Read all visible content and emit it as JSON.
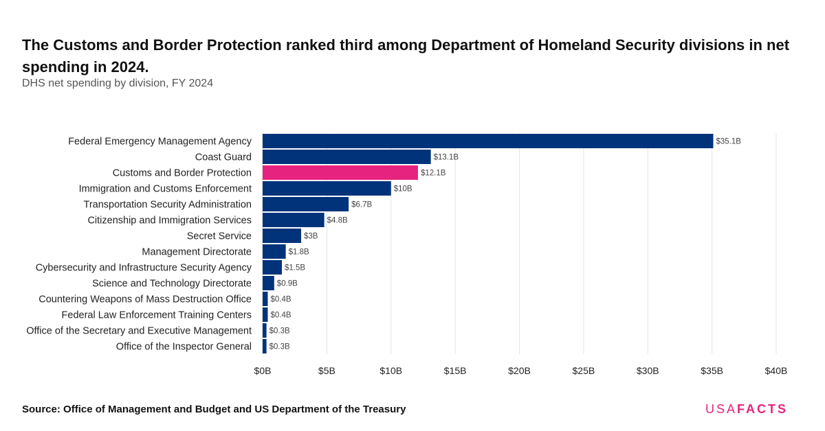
{
  "header": {
    "title": "The Customs and Border Protection ranked third among Department of Homeland Security divisions in net spending in 2024.",
    "subtitle": "DHS net spending by division, FY 2024"
  },
  "footer": {
    "source_label": "Source:",
    "source_text": "Office of Management and Budget and US Department of the Treasury",
    "logo_part1": "USA",
    "logo_part2": "FACTS"
  },
  "colors": {
    "bar": "#00337a",
    "highlight": "#e6237e",
    "grid": "#e4e4e4"
  },
  "chart_data": {
    "type": "bar",
    "orientation": "horizontal",
    "categories": [
      "Federal Emergency Management Agency",
      "Coast Guard",
      "Customs and Border Protection",
      "Immigration and Customs Enforcement",
      "Transportation Security Administration",
      "Citizenship and Immigration Services",
      "Secret Service",
      "Management Directorate",
      "Cybersecurity and Infrastructure Security Agency",
      "Science and Technology Directorate",
      "Countering Weapons of Mass Destruction Office",
      "Federal Law Enforcement Training Centers",
      "Office of the Secretary and Executive Management",
      "Office of the Inspector General"
    ],
    "values": [
      35.1,
      13.1,
      12.1,
      10,
      6.7,
      4.8,
      3,
      1.8,
      1.5,
      0.9,
      0.4,
      0.4,
      0.3,
      0.3
    ],
    "value_labels": [
      "$35.1B",
      "$13.1B",
      "$12.1B",
      "$10B",
      "$6.7B",
      "$4.8B",
      "$3B",
      "$1.8B",
      "$1.5B",
      "$0.9B",
      "$0.4B",
      "$0.4B",
      "$0.3B",
      "$0.3B"
    ],
    "highlight_category": "Customs and Border Protection",
    "xlim": [
      0,
      40
    ],
    "xticks": [
      0,
      5,
      10,
      15,
      20,
      25,
      30,
      35,
      40
    ],
    "xtick_labels": [
      "$0B",
      "$5B",
      "$10B",
      "$15B",
      "$20B",
      "$25B",
      "$30B",
      "$35B",
      "$40B"
    ],
    "grid": true
  }
}
